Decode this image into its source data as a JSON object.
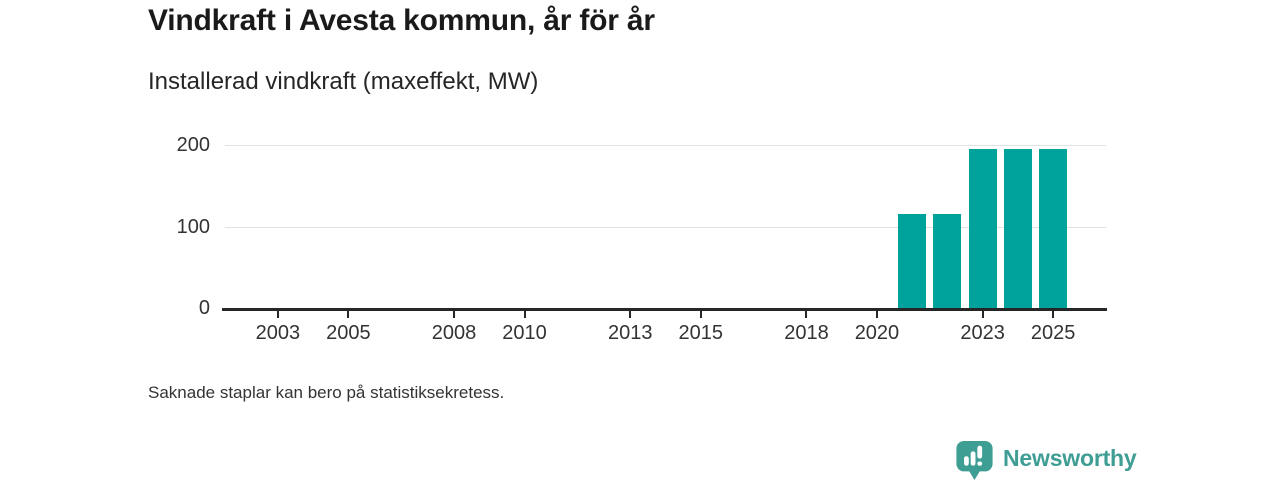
{
  "header": {
    "title": "Vindkraft i Avesta kommun, år för år",
    "subtitle": "Installerad vindkraft (maxeffekt, MW)"
  },
  "footnote": "Saknade staplar kan bero på statistiksekretess.",
  "brand": {
    "name": "Newsworthy",
    "color": "#3f9e94",
    "icon": "bar-chart-speech-bubble-icon"
  },
  "chart_data": {
    "type": "bar",
    "title": "Vindkraft i Avesta kommun, år för år",
    "ylabel": "Installerad vindkraft (maxeffekt, MW)",
    "xlabel": "",
    "x_domain": [
      2002,
      2026
    ],
    "x_tick_labels": [
      2003,
      2005,
      2008,
      2010,
      2013,
      2015,
      2018,
      2020,
      2023,
      2025
    ],
    "y_ticks": [
      0,
      100,
      200
    ],
    "ylim": [
      0,
      200
    ],
    "grid": "horizontal",
    "legend": "none",
    "bar_color": "#00a39b",
    "series": [
      {
        "name": "Installerad vindkraft (maxeffekt, MW)",
        "points": [
          {
            "year": 2021,
            "value": 115
          },
          {
            "year": 2022,
            "value": 115
          },
          {
            "year": 2023,
            "value": 195
          },
          {
            "year": 2024,
            "value": 195
          },
          {
            "year": 2025,
            "value": 195
          }
        ]
      }
    ],
    "note": "Years 2002-2020 and 2026 show no bars (no installed capacity shown / possible statistical secrecy)"
  }
}
